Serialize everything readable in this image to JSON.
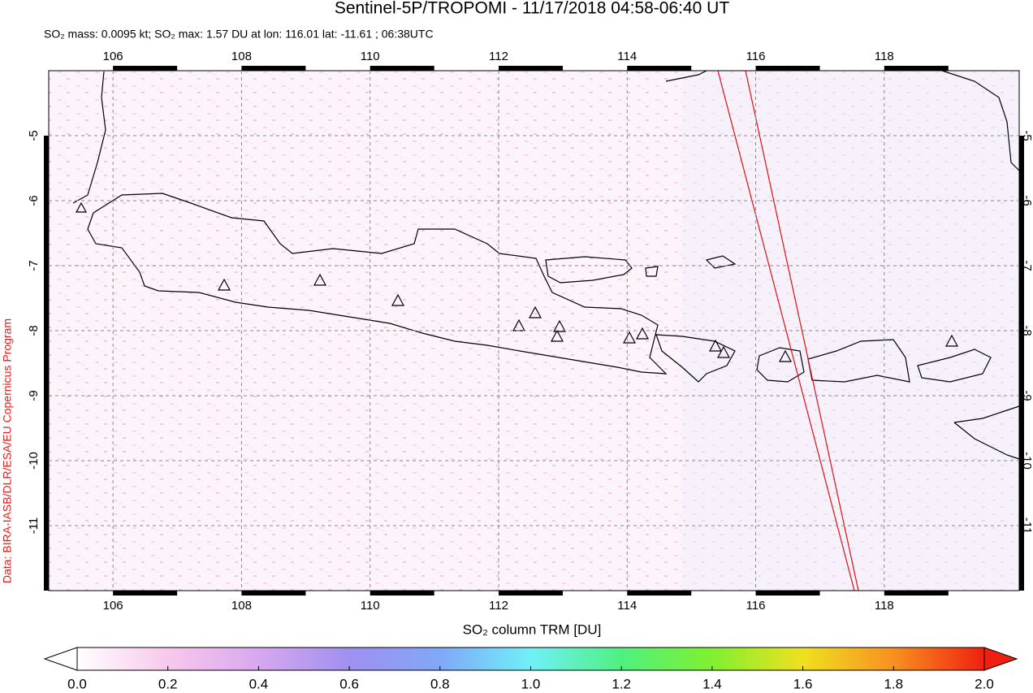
{
  "chart_data": {
    "type": "map",
    "title": "Sentinel-5P/TROPOMI - 11/17/2018 04:58-06:40 UT",
    "subtitle": "SO₂ mass: 0.0095 kt; SO₂ max: 1.57 DU at lon: 116.01 lat: -11.61 ; 06:38UTC",
    "credit": "Data: BIRA-IASB/DLR/ESA/EU Copernicus Program",
    "colorbar_label": "SO₂ column TRM [DU]",
    "xlim": [
      105,
      120.1
    ],
    "ylim": [
      -12,
      -4
    ],
    "xticks": [
      106,
      108,
      110,
      112,
      114,
      116,
      118
    ],
    "yticks": [
      -5,
      -6,
      -7,
      -8,
      -9,
      -10,
      -11
    ],
    "grid": true,
    "clim": [
      0,
      2
    ],
    "cticks": [
      {
        "value": 0,
        "label": "0.0"
      },
      {
        "value": 0.2,
        "label": "0.2"
      },
      {
        "value": 0.4,
        "label": "0.4"
      },
      {
        "value": 0.6,
        "label": "0.6"
      },
      {
        "value": 0.8,
        "label": "0.8"
      },
      {
        "value": 1,
        "label": "1.0"
      },
      {
        "value": 1.2,
        "label": "1.2"
      },
      {
        "value": 1.4,
        "label": "1.4"
      },
      {
        "value": 1.6,
        "label": "1.6"
      },
      {
        "value": 1.8,
        "label": "1.8"
      },
      {
        "value": 2,
        "label": "2.0"
      }
    ],
    "colormap": [
      "#ffffff",
      "#f8c8ec",
      "#d8a8f0",
      "#a090f0",
      "#80a8f8",
      "#70f0f8",
      "#50f080",
      "#80f030",
      "#f0e020",
      "#f89020",
      "#f02010"
    ]
  }
}
